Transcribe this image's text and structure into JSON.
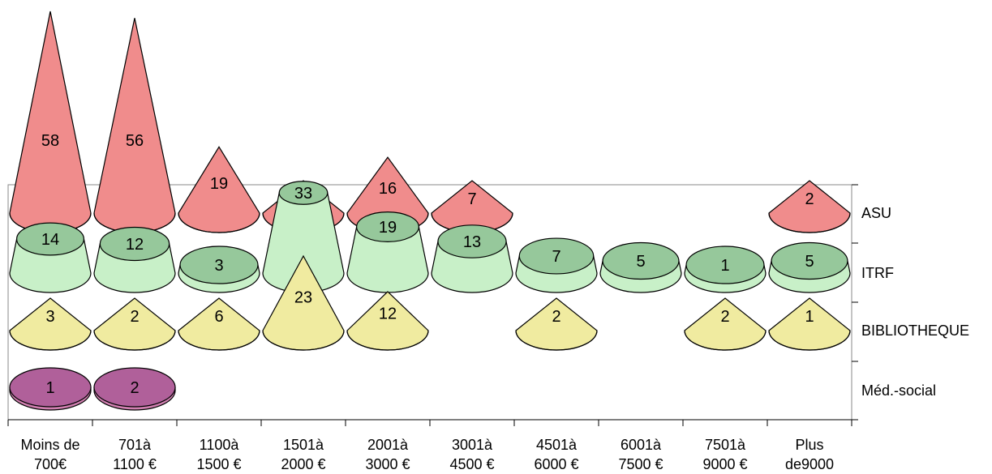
{
  "chart_data": {
    "type": "3d-bar",
    "categories": [
      [
        "Moins de",
        "700€"
      ],
      [
        "701à",
        "1100 €"
      ],
      [
        "1100à",
        "1500 €"
      ],
      [
        "1501à",
        "2000 €"
      ],
      [
        "2001à",
        "3000 €"
      ],
      [
        "3001à",
        "4500 €"
      ],
      [
        "4501à",
        "6000 €"
      ],
      [
        "6001à",
        "7500 €"
      ],
      [
        "7501à",
        "9000 €"
      ],
      [
        "Plus",
        "de9000"
      ]
    ],
    "series": [
      {
        "name": "ASU",
        "color": "#F08C8C",
        "top_color": "#C86464",
        "values": [
          58,
          56,
          19,
          7,
          16,
          7,
          null,
          null,
          null,
          2
        ]
      },
      {
        "name": "ITRF",
        "color": "#C8F0C8",
        "top_color": "#96C89B",
        "values": [
          14,
          12,
          3,
          33,
          19,
          13,
          7,
          5,
          1,
          5
        ]
      },
      {
        "name": "BIBLIOTHEQUE",
        "color": "#F0EBA0",
        "top_color": "#C8BE6E",
        "values": [
          3,
          2,
          6,
          23,
          12,
          null,
          2,
          null,
          2,
          1
        ]
      },
      {
        "name": "Méd.-social",
        "color": "#D080B0",
        "top_color": "#B0609A",
        "values": [
          1,
          2,
          null,
          null,
          null,
          null,
          null,
          null,
          null,
          null
        ]
      }
    ]
  }
}
